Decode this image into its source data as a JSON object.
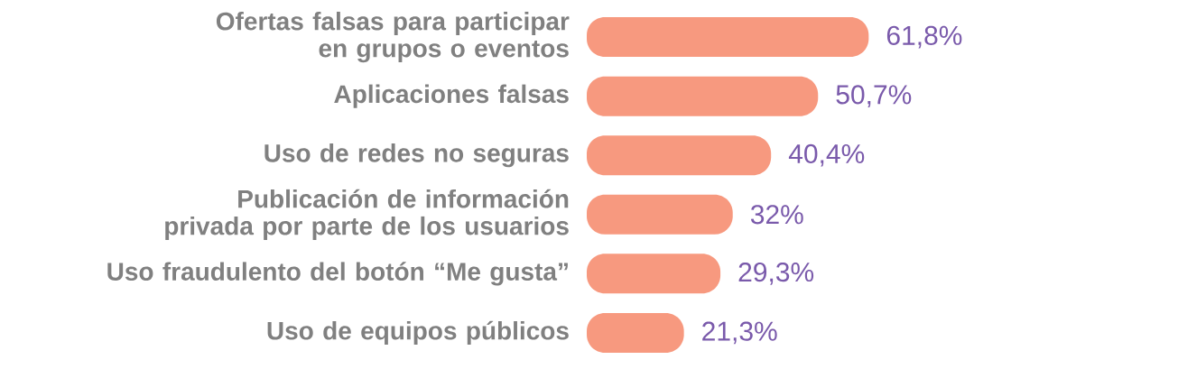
{
  "chart_data": {
    "type": "bar",
    "orientation": "horizontal",
    "categories": [
      "Ofertas falsas para participar en grupos o eventos",
      "Aplicaciones falsas",
      "Uso de redes no seguras",
      "Publicación de información privada por parte de los usuarios",
      "Uso fraudulento del botón “Me gusta”",
      "Uso de equipos públicos"
    ],
    "values": [
      61.8,
      50.7,
      40.4,
      32,
      29.3,
      21.3
    ],
    "value_labels": [
      "61,8%",
      "50,7%",
      "40,4%",
      "32%",
      "29,3%",
      "21,3%"
    ],
    "color": "#f7997f"
  }
}
